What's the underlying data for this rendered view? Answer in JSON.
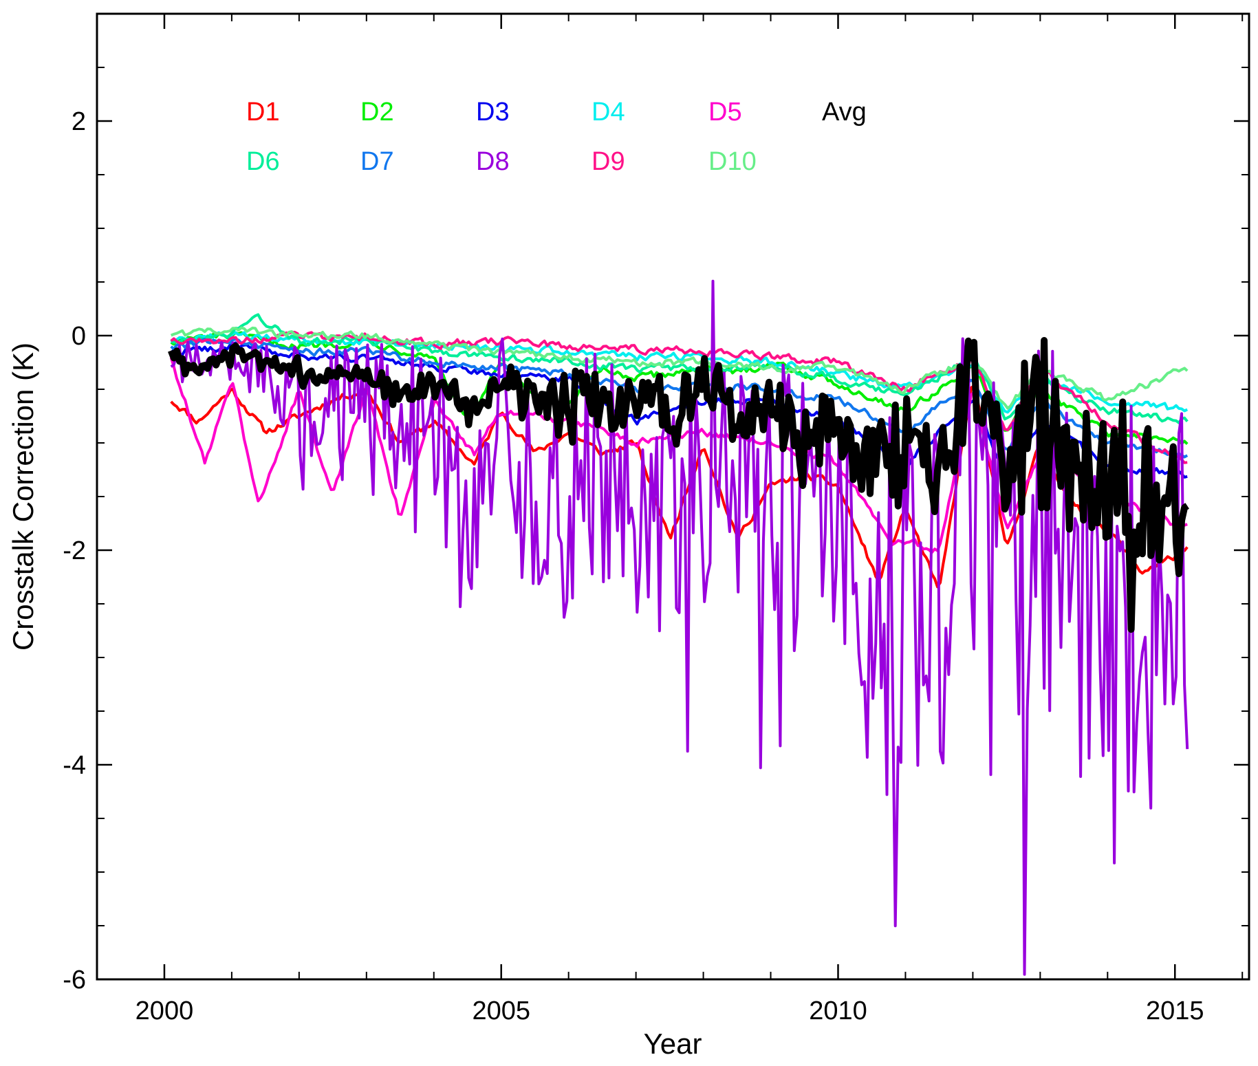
{
  "chart_data": {
    "type": "line",
    "title": "",
    "xlabel": "Year",
    "ylabel": "Crosstalk Correction (K)",
    "xlim": [
      1999,
      2016.1
    ],
    "ylim": [
      -6,
      3
    ],
    "x_major_ticks": [
      2000,
      2005,
      2010,
      2015
    ],
    "x_major_labels": [
      "2000",
      "2005",
      "2010",
      "2015"
    ],
    "y_major_ticks": [
      -6,
      -4,
      -2,
      0,
      2
    ],
    "y_major_labels": [
      "-6",
      "-4",
      "-2",
      "0",
      "2"
    ],
    "grid": false,
    "legend_placement": "top-left, inside plot",
    "series": [
      {
        "name": "D1",
        "color": "#ff0000",
        "anchors": [
          [
            2000.1,
            -0.6
          ],
          [
            2000.5,
            -0.8
          ],
          [
            2001.0,
            -0.5
          ],
          [
            2001.5,
            -0.9
          ],
          [
            2002.0,
            -0.75
          ],
          [
            2002.5,
            -0.6
          ],
          [
            2003.0,
            -0.5
          ],
          [
            2003.5,
            -1.0
          ],
          [
            2004.0,
            -0.8
          ],
          [
            2004.6,
            -1.2
          ],
          [
            2005.0,
            -0.7
          ],
          [
            2005.5,
            -1.1
          ],
          [
            2006.0,
            -0.9
          ],
          [
            2006.5,
            -1.1
          ],
          [
            2007.0,
            -1.0
          ],
          [
            2007.5,
            -1.9
          ],
          [
            2008.0,
            -1.0
          ],
          [
            2008.5,
            -1.9
          ],
          [
            2009.0,
            -1.4
          ],
          [
            2009.5,
            -1.3
          ],
          [
            2010.0,
            -1.4
          ],
          [
            2010.6,
            -2.3
          ],
          [
            2011.0,
            -1.6
          ],
          [
            2011.5,
            -2.4
          ],
          [
            2012.0,
            -0.4
          ],
          [
            2012.5,
            -2.0
          ],
          [
            2013.0,
            -1.0
          ],
          [
            2013.5,
            -1.6
          ],
          [
            2014.0,
            -1.8
          ],
          [
            2014.5,
            -2.2
          ],
          [
            2015.2,
            -2.0
          ]
        ]
      },
      {
        "name": "D2",
        "color": "#00ee00",
        "anchors": [
          [
            2000.1,
            -0.05
          ],
          [
            2001.0,
            0.0
          ],
          [
            2002.0,
            -0.1
          ],
          [
            2003.0,
            -0.05
          ],
          [
            2004.0,
            -0.2
          ],
          [
            2004.5,
            -0.8
          ],
          [
            2005.0,
            -0.25
          ],
          [
            2005.8,
            -0.8
          ],
          [
            2006.5,
            -0.3
          ],
          [
            2007.0,
            -0.4
          ],
          [
            2008.0,
            -0.3
          ],
          [
            2008.5,
            -0.35
          ],
          [
            2009.0,
            -0.25
          ],
          [
            2010.0,
            -0.45
          ],
          [
            2011.0,
            -0.7
          ],
          [
            2012.0,
            -0.3
          ],
          [
            2012.5,
            -0.9
          ],
          [
            2013.0,
            -0.5
          ],
          [
            2014.0,
            -0.9
          ],
          [
            2015.2,
            -1.0
          ]
        ]
      },
      {
        "name": "D3",
        "color": "#0000ee",
        "anchors": [
          [
            2000.1,
            -0.15
          ],
          [
            2001.0,
            -0.1
          ],
          [
            2002.0,
            -0.2
          ],
          [
            2003.0,
            -0.2
          ],
          [
            2004.0,
            -0.3
          ],
          [
            2005.0,
            -0.35
          ],
          [
            2006.0,
            -0.4
          ],
          [
            2007.0,
            -0.8
          ],
          [
            2008.0,
            -0.6
          ],
          [
            2009.0,
            -0.6
          ],
          [
            2010.0,
            -0.8
          ],
          [
            2011.0,
            -1.2
          ],
          [
            2012.0,
            -0.6
          ],
          [
            2012.5,
            -1.3
          ],
          [
            2013.0,
            -0.8
          ],
          [
            2014.0,
            -1.2
          ],
          [
            2015.2,
            -1.3
          ]
        ]
      },
      {
        "name": "D4",
        "color": "#00eeee",
        "anchors": [
          [
            2000.1,
            -0.05
          ],
          [
            2001.0,
            0.0
          ],
          [
            2002.0,
            -0.05
          ],
          [
            2003.0,
            -0.05
          ],
          [
            2004.0,
            -0.1
          ],
          [
            2005.0,
            -0.12
          ],
          [
            2006.0,
            -0.15
          ],
          [
            2007.0,
            -0.2
          ],
          [
            2008.0,
            -0.2
          ],
          [
            2009.0,
            -0.25
          ],
          [
            2010.0,
            -0.35
          ],
          [
            2011.0,
            -0.5
          ],
          [
            2012.0,
            -0.25
          ],
          [
            2012.5,
            -0.7
          ],
          [
            2013.0,
            -0.4
          ],
          [
            2014.0,
            -0.6
          ],
          [
            2015.2,
            -0.7
          ]
        ]
      },
      {
        "name": "D5",
        "color": "#ff00cc",
        "anchors": [
          [
            2000.1,
            -0.2
          ],
          [
            2000.6,
            -1.2
          ],
          [
            2001.0,
            -0.4
          ],
          [
            2001.4,
            -1.6
          ],
          [
            2002.0,
            -0.5
          ],
          [
            2002.5,
            -1.5
          ],
          [
            2003.0,
            -0.5
          ],
          [
            2003.5,
            -1.7
          ],
          [
            2004.0,
            -0.6
          ],
          [
            2004.6,
            -1.1
          ],
          [
            2005.0,
            -0.7
          ],
          [
            2006.0,
            -0.8
          ],
          [
            2007.0,
            -1.0
          ],
          [
            2008.0,
            -0.9
          ],
          [
            2009.0,
            -1.0
          ],
          [
            2010.0,
            -1.2
          ],
          [
            2010.8,
            -1.9
          ],
          [
            2011.5,
            -2.0
          ],
          [
            2012.0,
            -0.5
          ],
          [
            2012.5,
            -1.8
          ],
          [
            2013.0,
            -1.1
          ],
          [
            2014.0,
            -1.5
          ],
          [
            2015.2,
            -1.8
          ]
        ]
      },
      {
        "name": "D6",
        "color": "#00ee99",
        "anchors": [
          [
            2000.1,
            -0.05
          ],
          [
            2001.0,
            0.0
          ],
          [
            2001.3,
            0.2
          ],
          [
            2002.0,
            -0.05
          ],
          [
            2003.0,
            -0.05
          ],
          [
            2004.0,
            -0.15
          ],
          [
            2005.0,
            -0.2
          ],
          [
            2006.0,
            -0.25
          ],
          [
            2007.0,
            -0.3
          ],
          [
            2008.0,
            -0.3
          ],
          [
            2009.0,
            -0.3
          ],
          [
            2010.0,
            -0.4
          ],
          [
            2011.0,
            -0.55
          ],
          [
            2012.0,
            -0.2
          ],
          [
            2012.5,
            -0.8
          ],
          [
            2013.0,
            -0.4
          ],
          [
            2014.0,
            -0.7
          ],
          [
            2015.2,
            -0.8
          ]
        ]
      },
      {
        "name": "D7",
        "color": "#1177ee",
        "anchors": [
          [
            2000.1,
            -0.1
          ],
          [
            2001.0,
            -0.05
          ],
          [
            2002.0,
            -0.15
          ],
          [
            2003.0,
            -0.15
          ],
          [
            2004.0,
            -0.25
          ],
          [
            2005.0,
            -0.3
          ],
          [
            2006.0,
            -0.35
          ],
          [
            2007.0,
            -0.5
          ],
          [
            2008.0,
            -0.45
          ],
          [
            2009.0,
            -0.5
          ],
          [
            2010.0,
            -0.6
          ],
          [
            2011.0,
            -0.9
          ],
          [
            2012.0,
            -0.4
          ],
          [
            2012.5,
            -1.1
          ],
          [
            2013.0,
            -0.6
          ],
          [
            2014.0,
            -1.0
          ],
          [
            2015.2,
            -1.1
          ]
        ]
      },
      {
        "name": "D8",
        "color": "#9900dd",
        "seed": 7,
        "anchors": [
          [
            2000.1,
            -0.2
          ],
          [
            2001.0,
            -0.2
          ],
          [
            2001.5,
            -0.3
          ],
          [
            2002.0,
            -0.6
          ],
          [
            2003.0,
            -0.5
          ],
          [
            2003.5,
            -1.0
          ],
          [
            2004.0,
            -0.7
          ],
          [
            2004.5,
            -2.2
          ],
          [
            2005.0,
            -0.8
          ],
          [
            2005.5,
            -1.5
          ],
          [
            2006.0,
            -1.4
          ],
          [
            2006.5,
            -1.2
          ],
          [
            2007.0,
            -1.6
          ],
          [
            2007.5,
            -1.8
          ],
          [
            2008.0,
            -1.1
          ],
          [
            2008.5,
            -1.4
          ],
          [
            2009.0,
            -1.3
          ],
          [
            2009.5,
            -1.8
          ],
          [
            2010.0,
            -1.6
          ],
          [
            2010.5,
            -2.4
          ],
          [
            2011.0,
            -2.5
          ],
          [
            2011.5,
            -2.8
          ],
          [
            2012.0,
            -1.2
          ],
          [
            2012.5,
            -2.5
          ],
          [
            2013.0,
            -1.6
          ],
          [
            2013.5,
            -2.6
          ],
          [
            2014.0,
            -2.4
          ],
          [
            2014.5,
            -2.6
          ],
          [
            2015.2,
            -2.3
          ]
        ],
        "amplitude_anchors": [
          [
            2000.1,
            0.15
          ],
          [
            2001.5,
            0.3
          ],
          [
            2002.0,
            0.6
          ],
          [
            2003.0,
            0.7
          ],
          [
            2004.0,
            1.0
          ],
          [
            2005.0,
            1.0
          ],
          [
            2006.0,
            1.2
          ],
          [
            2007.0,
            1.3
          ],
          [
            2008.0,
            1.3
          ],
          [
            2009.0,
            1.4
          ],
          [
            2010.0,
            1.7
          ],
          [
            2011.0,
            2.2
          ],
          [
            2012.0,
            1.9
          ],
          [
            2013.0,
            1.9
          ],
          [
            2014.0,
            2.1
          ],
          [
            2015.2,
            2.1
          ]
        ]
      },
      {
        "name": "D9",
        "color": "#ff1188",
        "anchors": [
          [
            2000.1,
            -0.05
          ],
          [
            2001.0,
            -0.05
          ],
          [
            2002.0,
            0.0
          ],
          [
            2003.0,
            -0.02
          ],
          [
            2004.0,
            -0.08
          ],
          [
            2005.0,
            -0.05
          ],
          [
            2006.0,
            -0.1
          ],
          [
            2007.0,
            -0.12
          ],
          [
            2008.0,
            -0.15
          ],
          [
            2009.0,
            -0.2
          ],
          [
            2010.0,
            -0.25
          ],
          [
            2011.0,
            -0.5
          ],
          [
            2012.0,
            -0.2
          ],
          [
            2012.5,
            -0.9
          ],
          [
            2013.0,
            -0.3
          ],
          [
            2014.0,
            -0.8
          ],
          [
            2015.2,
            -1.2
          ]
        ]
      },
      {
        "name": "D10",
        "color": "#66ee88",
        "anchors": [
          [
            2000.1,
            0.0
          ],
          [
            2001.0,
            0.05
          ],
          [
            2002.0,
            0.0
          ],
          [
            2003.0,
            0.0
          ],
          [
            2004.0,
            -0.1
          ],
          [
            2005.0,
            -0.15
          ],
          [
            2006.0,
            -0.2
          ],
          [
            2007.0,
            -0.25
          ],
          [
            2008.0,
            -0.25
          ],
          [
            2009.0,
            -0.3
          ],
          [
            2010.0,
            -0.3
          ],
          [
            2011.0,
            -0.5
          ],
          [
            2012.0,
            -0.2
          ],
          [
            2012.5,
            -0.7
          ],
          [
            2013.0,
            -0.3
          ],
          [
            2014.0,
            -0.6
          ],
          [
            2015.2,
            -0.3
          ]
        ]
      },
      {
        "name": "Avg",
        "color": "#000000",
        "seed": 3,
        "anchors": [
          [
            2000.1,
            -0.15
          ],
          [
            2000.5,
            -0.3
          ],
          [
            2001.0,
            -0.15
          ],
          [
            2001.5,
            -0.25
          ],
          [
            2002.0,
            -0.3
          ],
          [
            2002.5,
            -0.4
          ],
          [
            2003.0,
            -0.3
          ],
          [
            2003.5,
            -0.55
          ],
          [
            2004.0,
            -0.45
          ],
          [
            2004.5,
            -0.7
          ],
          [
            2005.0,
            -0.45
          ],
          [
            2005.5,
            -0.6
          ],
          [
            2006.0,
            -0.6
          ],
          [
            2006.5,
            -0.6
          ],
          [
            2007.0,
            -0.7
          ],
          [
            2007.5,
            -0.7
          ],
          [
            2008.0,
            -0.5
          ],
          [
            2008.5,
            -0.7
          ],
          [
            2009.0,
            -0.6
          ],
          [
            2009.5,
            -0.9
          ],
          [
            2010.0,
            -0.9
          ],
          [
            2010.5,
            -1.2
          ],
          [
            2011.0,
            -1.1
          ],
          [
            2011.5,
            -1.4
          ],
          [
            2012.0,
            -0.3
          ],
          [
            2012.5,
            -1.3
          ],
          [
            2013.0,
            -0.4
          ],
          [
            2013.5,
            -1.2
          ],
          [
            2014.0,
            -1.3
          ],
          [
            2014.5,
            -1.6
          ],
          [
            2015.2,
            -1.5
          ]
        ],
        "amplitude_anchors": [
          [
            2000.1,
            0.05
          ],
          [
            2002.0,
            0.1
          ],
          [
            2004.0,
            0.15
          ],
          [
            2006.0,
            0.3
          ],
          [
            2008.0,
            0.35
          ],
          [
            2010.0,
            0.4
          ],
          [
            2011.0,
            0.6
          ],
          [
            2012.0,
            0.5
          ],
          [
            2013.0,
            0.6
          ],
          [
            2014.0,
            0.7
          ],
          [
            2015.2,
            0.8
          ]
        ]
      }
    ],
    "legend_layout": [
      [
        "D1",
        "D2",
        "D3",
        "D4",
        "D5",
        "Avg"
      ],
      [
        "D6",
        "D7",
        "D8",
        "D9",
        "D10"
      ]
    ]
  }
}
